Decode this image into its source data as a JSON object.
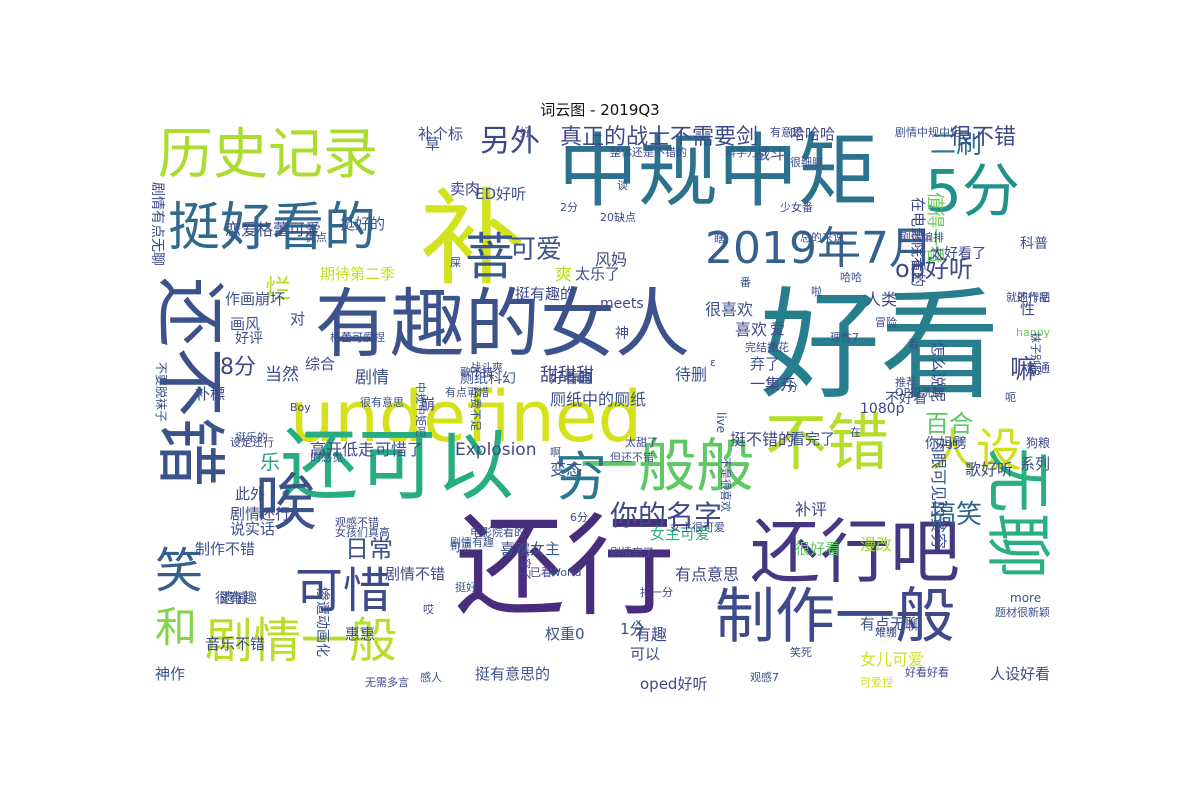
{
  "title": "词云图 - 2019Q3",
  "words": [
    {
      "text": "好看",
      "color": "#277f8e",
      "vertical": false
    },
    {
      "text": "还行",
      "color": "#472d7b",
      "vertical": false
    },
    {
      "text": "undefined",
      "color": "#d5e21a",
      "vertical": false
    },
    {
      "text": "有趣的女人",
      "color": "#3b528b",
      "vertical": false
    },
    {
      "text": "中规中矩",
      "color": "#2c728e",
      "vertical": false
    },
    {
      "text": "还可以",
      "color": "#27ad81",
      "vertical": false
    },
    {
      "text": "还不错",
      "color": "#3b528b",
      "vertical": true
    },
    {
      "text": "补",
      "color": "#d2e21b",
      "vertical": false
    },
    {
      "text": "历史记录",
      "color": "#addc30",
      "vertical": false
    },
    {
      "text": "还行吧",
      "color": "#453781",
      "vertical": false
    },
    {
      "text": "一般般",
      "color": "#5ec962",
      "vertical": false
    },
    {
      "text": "不错",
      "color": "#b5de2b",
      "vertical": false
    },
    {
      "text": "无聊",
      "color": "#2ab07f",
      "vertical": true
    },
    {
      "text": "制作一般",
      "color": "#3e4a89",
      "vertical": false
    },
    {
      "text": "挺好看的",
      "color": "#31688e",
      "vertical": false
    },
    {
      "text": "5分",
      "color": "#21918c",
      "vertical": false
    },
    {
      "text": "2019年7月",
      "color": "#33638d",
      "vertical": false
    },
    {
      "text": "唉",
      "color": "#3b528b",
      "vertical": false
    },
    {
      "text": "剧情一般",
      "color": "#b8de29",
      "vertical": false
    },
    {
      "text": "可惜",
      "color": "#3e4a89",
      "vertical": false
    },
    {
      "text": "穷",
      "color": "#2a788e",
      "vertical": false
    },
    {
      "text": "人设",
      "color": "#d0e11c",
      "vertical": false
    },
    {
      "text": "笑",
      "color": "#355f8d",
      "vertical": false
    },
    {
      "text": "和",
      "color": "#84d44b",
      "vertical": false
    },
    {
      "text": "菩",
      "color": "#38598c",
      "vertical": false
    },
    {
      "text": "另外",
      "color": "#3e4989",
      "vertical": false
    },
    {
      "text": "真正的战士不需要剑",
      "color": "#3e4a89",
      "vertical": false
    },
    {
      "text": "二刷",
      "color": "#2d708e",
      "vertical": false
    },
    {
      "text": "很不错",
      "color": "#3e4989",
      "vertical": false
    },
    {
      "text": "可爱",
      "color": "#3b528b",
      "vertical": false
    },
    {
      "text": "op好听",
      "color": "#3e4a89",
      "vertical": false
    },
    {
      "text": "你的名字",
      "color": "#3e4a89",
      "vertical": false
    },
    {
      "text": "搞笑",
      "color": "#33638d",
      "vertical": false
    },
    {
      "text": "日常",
      "color": "#3b528b",
      "vertical": false
    },
    {
      "text": "嘛",
      "color": "#3e4989",
      "vertical": false
    },
    {
      "text": "百合",
      "color": "#5ec962",
      "vertical": false
    },
    {
      "text": "8分",
      "color": "#3e4989",
      "vertical": false
    },
    {
      "text": "烂",
      "color": "#b5de2b",
      "vertical": false
    },
    {
      "text": "值得一看",
      "color": "#6ccd5a",
      "vertical": true
    },
    {
      "text": "乐",
      "color": "#21a685",
      "vertical": false
    },
    {
      "text": "恋爱格蕾可爱",
      "color": "#3e4989",
      "vertical": false
    },
    {
      "text": "作画崩坏",
      "color": "#3b528b",
      "vertical": false
    },
    {
      "text": "期待第二季",
      "color": "#c2df23",
      "vertical": false
    },
    {
      "text": "当然",
      "color": "#3e4989",
      "vertical": false
    },
    {
      "text": "剧情",
      "color": "#3b528b",
      "vertical": false
    },
    {
      "text": "综合",
      "color": "#3e4989",
      "vertical": false
    },
    {
      "text": "画风",
      "color": "#3b528b",
      "vertical": false
    },
    {
      "text": "甜甜甜",
      "color": "#3e4989",
      "vertical": false
    },
    {
      "text": "待删",
      "color": "#3b528b",
      "vertical": false
    },
    {
      "text": "高开低走",
      "color": "#3e4989",
      "vertical": false
    },
    {
      "text": "可惜了",
      "color": "#3b528b",
      "vertical": false
    },
    {
      "text": "Explosion",
      "color": "#3e4989",
      "vertical": false
    },
    {
      "text": "变态",
      "color": "#3b528b",
      "vertical": false
    },
    {
      "text": "挺不错的",
      "color": "#3e4989",
      "vertical": false
    },
    {
      "text": "看完了",
      "color": "#3b528b",
      "vertical": false
    },
    {
      "text": "补评",
      "color": "#3e4989",
      "vertical": false
    },
    {
      "text": "很好看",
      "color": "#5ec962",
      "vertical": false
    },
    {
      "text": "漫改",
      "color": "#a0da39",
      "vertical": false
    },
    {
      "text": "歌好听",
      "color": "#3e4989",
      "vertical": false
    },
    {
      "text": "系列",
      "color": "#3b528b",
      "vertical": false
    },
    {
      "text": "女主可爱",
      "color": "#2fb47c",
      "vertical": false
    },
    {
      "text": "有点意思",
      "color": "#3e4989",
      "vertical": false
    },
    {
      "text": "有点无聊",
      "color": "#3b528b",
      "vertical": false
    },
    {
      "text": "女儿可爱",
      "color": "#d0e11c",
      "vertical": false
    },
    {
      "text": "人设好看",
      "color": "#3e4989",
      "vertical": false
    },
    {
      "text": "权重0",
      "color": "#3b528b",
      "vertical": false
    },
    {
      "text": "有趣",
      "color": "#3e4989",
      "vertical": false
    },
    {
      "text": "挺有意思的",
      "color": "#3b528b",
      "vertical": false
    },
    {
      "text": "oped好听",
      "color": "#3e4989",
      "vertical": false
    },
    {
      "text": "制作不错",
      "color": "#3b528b",
      "vertical": false
    },
    {
      "text": "剧情还行",
      "color": "#3e4989",
      "vertical": false
    },
    {
      "text": "说实话",
      "color": "#3b528b",
      "vertical": false
    },
    {
      "text": "剧情不错",
      "color": "#3e4989",
      "vertical": false
    },
    {
      "text": "喜欢女主",
      "color": "#3b528b",
      "vertical": false
    },
    {
      "text": "喜欢",
      "color": "#3e4989",
      "vertical": false
    },
    {
      "text": "很喜欢",
      "color": "#3b528b",
      "vertical": false
    },
    {
      "text": "风妈",
      "color": "#3e4989",
      "vertical": false
    },
    {
      "text": "爽",
      "color": "#b8de29",
      "vertical": false
    },
    {
      "text": "太乐了",
      "color": "#3b528b",
      "vertical": false
    },
    {
      "text": "挺有趣的",
      "color": "#3e4989",
      "vertical": false
    },
    {
      "text": "ED好听",
      "color": "#3b528b",
      "vertical": false
    },
    {
      "text": "卖肉",
      "color": "#3e4989",
      "vertical": false
    },
    {
      "text": "战斗",
      "color": "#3b528b",
      "vertical": false
    },
    {
      "text": "哈哈哈",
      "color": "#3e4989",
      "vertical": false
    },
    {
      "text": "挺好的",
      "color": "#3b528b",
      "vertical": false
    },
    {
      "text": "补个标",
      "color": "#3e4989",
      "vertical": false
    },
    {
      "text": "草",
      "color": "#3b528b",
      "vertical": false
    },
    {
      "text": "补標",
      "color": "#3e4989",
      "vertical": false
    },
    {
      "text": "不好看",
      "color": "#3b528b",
      "vertical": false
    },
    {
      "text": "1080p",
      "color": "#3e4989",
      "vertical": false
    },
    {
      "text": "科普",
      "color": "#3b528b",
      "vertical": false
    },
    {
      "text": "太好看了",
      "color": "#3e4989",
      "vertical": false
    },
    {
      "text": "你妈劈",
      "color": "#3b528b",
      "vertical": false
    },
    {
      "text": "一集弃",
      "color": "#3e4989",
      "vertical": false
    },
    {
      "text": "弃了",
      "color": "#3b528b",
      "vertical": false
    },
    {
      "text": "好看的",
      "color": "#3e4989",
      "vertical": false
    },
    {
      "text": "作画",
      "color": "#3b528b",
      "vertical": false
    },
    {
      "text": "神",
      "color": "#3e4989",
      "vertical": false
    },
    {
      "text": "好评",
      "color": "#3b528b",
      "vertical": false
    },
    {
      "text": "音乐不错",
      "color": "#3e4989",
      "vertical": false
    },
    {
      "text": "神作",
      "color": "#3b528b",
      "vertical": false
    },
    {
      "text": "此外",
      "color": "#3e4989",
      "vertical": false
    },
    {
      "text": "很有趣",
      "color": "#3b528b",
      "vertical": false
    },
    {
      "text": "遗憾",
      "color": "#3e4989",
      "vertical": false
    },
    {
      "text": "惠惠",
      "color": "#3b528b",
      "vertical": false
    },
    {
      "text": "可以",
      "color": "#3e4989",
      "vertical": false
    },
    {
      "text": "1分",
      "color": "#3b528b",
      "vertical": false
    },
    {
      "text": "人类",
      "color": "#3e4989",
      "vertical": false
    },
    {
      "text": "性",
      "color": "#3b528b",
      "vertical": false
    },
    {
      "text": "对",
      "color": "#3e4989",
      "vertical": false
    },
    {
      "text": "爱",
      "color": "#3b528b",
      "vertical": false
    },
    {
      "text": "崩",
      "color": "#3e4989",
      "vertical": false
    },
    {
      "text": "厕纸科幻",
      "color": "#3b528b",
      "vertical": false
    },
    {
      "text": "meets",
      "color": "#3e4989",
      "vertical": false
    },
    {
      "text": "厕纸中的厕纸",
      "color": "#3b528b",
      "vertical": false
    },
    {
      "text": "怎么说呢",
      "color": "#3e4989",
      "vertical": true
    },
    {
      "text": "内眼可见的贫穷",
      "color": "#3b528b",
      "vertical": true
    },
    {
      "text": "在电影院看的",
      "color": "#3e4989",
      "vertical": true
    },
    {
      "text": "惨遭动画化",
      "color": "#3b528b",
      "vertical": true
    },
    {
      "text": "剧情有点无聊",
      "color": "#3e4989",
      "vertical": true
    },
    {
      "text": "不要脱袜子",
      "color": "#3b528b",
      "vertical": true
    },
    {
      "text": "普通",
      "color": "#3e4989",
      "vertical": false
    },
    {
      "text": "理性7",
      "color": "#3b528b",
      "vertical": false
    },
    {
      "text": "冒险",
      "color": "#3e4989",
      "vertical": false
    },
    {
      "text": "哈哈",
      "color": "#3b528b",
      "vertical": false
    },
    {
      "text": "就还行吧",
      "color": "#3e4989",
      "vertical": false
    },
    {
      "text": "总的来说",
      "color": "#3b528b",
      "vertical": false
    },
    {
      "text": "少女番",
      "color": "#3e4989",
      "vertical": false
    },
    {
      "text": "很细腻",
      "color": "#3b528b",
      "vertical": false
    },
    {
      "text": "整体还是不错的",
      "color": "#3e4989",
      "vertical": false
    },
    {
      "text": "科学万岁",
      "color": "#3b528b",
      "vertical": false
    },
    {
      "text": "有意思",
      "color": "#3e4989",
      "vertical": false
    },
    {
      "text": "剧情中规中矩",
      "color": "#3b528b",
      "vertical": false
    },
    {
      "text": "可爱捏",
      "color": "#d0e11c",
      "vertical": false
    },
    {
      "text": "好看好看",
      "color": "#3e4989",
      "vertical": false
    },
    {
      "text": "笑死",
      "color": "#3b528b",
      "vertical": false
    },
    {
      "text": "难绷",
      "color": "#3e4989",
      "vertical": false
    },
    {
      "text": "题材很新颖",
      "color": "#3b528b",
      "vertical": false
    },
    {
      "text": "OP很洗脑",
      "color": "#3e4989",
      "vertical": false
    },
    {
      "text": "推荐",
      "color": "#3b528b",
      "vertical": false
    },
    {
      "text": "完结撒花",
      "color": "#3e4989",
      "vertical": false
    },
    {
      "text": "观感7",
      "color": "#3b528b",
      "vertical": false
    },
    {
      "text": "Boy",
      "color": "#3e4989",
      "vertical": false
    },
    {
      "text": "World",
      "color": "#3b528b",
      "vertical": false
    },
    {
      "text": "girl",
      "color": "#3e4989",
      "vertical": false
    },
    {
      "text": "happy",
      "color": "#6ccd5a",
      "vertical": false
    },
    {
      "text": "more",
      "color": "#3b528b",
      "vertical": false
    },
    {
      "text": "live",
      "color": "#3e4989",
      "vertical": true
    },
    {
      "text": "x",
      "color": "#3b528b",
      "vertical": false
    },
    {
      "text": "ε",
      "color": "#3e4989",
      "vertical": false
    },
    {
      "text": "7分",
      "color": "#3b528b",
      "vertical": false
    },
    {
      "text": "6分",
      "color": "#3e4989",
      "vertical": false
    },
    {
      "text": "2分",
      "color": "#3b528b",
      "vertical": false
    },
    {
      "text": "20缺点",
      "color": "#3e4989",
      "vertical": false
    },
    {
      "text": "优点",
      "color": "#3b528b",
      "vertical": false
    },
    {
      "text": "的作品",
      "color": "#3e4989",
      "vertical": false
    },
    {
      "text": "挺乐的",
      "color": "#3b528b",
      "vertical": false
    },
    {
      "text": "设定还行",
      "color": "#3e4989",
      "vertical": false
    },
    {
      "text": "挺好",
      "color": "#3b528b",
      "vertical": false
    },
    {
      "text": "扣一分",
      "color": "#3e4989",
      "vertical": false
    },
    {
      "text": "可恶",
      "color": "#3b528b",
      "vertical": false
    },
    {
      "text": "已看",
      "color": "#3e4989",
      "vertical": false
    },
    {
      "text": "感人",
      "color": "#3b528b",
      "vertical": false
    },
    {
      "text": "无需多言",
      "color": "#3e4989",
      "vertical": false
    },
    {
      "text": "的感觉",
      "color": "#3b528b",
      "vertical": false
    },
    {
      "text": "女主很可爱",
      "color": "#3e4989",
      "vertical": false
    },
    {
      "text": "剧情忘了",
      "color": "#3b528b",
      "vertical": false
    },
    {
      "text": "观感不错",
      "color": "#3e4989",
      "vertical": false
    },
    {
      "text": "女孩们真高",
      "color": "#3b528b",
      "vertical": false
    },
    {
      "text": "格蕾可爱捏",
      "color": "#3e4989",
      "vertical": false
    },
    {
      "text": "很有意思",
      "color": "#3b528b",
      "vertical": false
    },
    {
      "text": "剧情编排",
      "color": "#3e4989",
      "vertical": false
    },
    {
      "text": "剧情有趣",
      "color": "#3b528b",
      "vertical": false
    },
    {
      "text": "电影院看的",
      "color": "#3e4989",
      "vertical": false
    },
    {
      "text": "经费不足",
      "color": "#3b528b",
      "vertical": true
    },
    {
      "text": "太穷了",
      "color": "#3e4989",
      "vertical": true
    },
    {
      "text": "中规中矩吧",
      "color": "#3b528b",
      "vertical": true
    },
    {
      "text": "歌不错",
      "color": "#3e4989",
      "vertical": false
    },
    {
      "text": "战斗爽",
      "color": "#3b528b",
      "vertical": false
    },
    {
      "text": "狗粮",
      "color": "#3e4989",
      "vertical": false
    },
    {
      "text": "不是很喜欢",
      "color": "#3b528b",
      "vertical": true
    },
    {
      "text": "袜子别脱",
      "color": "#3e4989",
      "vertical": true
    },
    {
      "text": "但还不错",
      "color": "#3b528b",
      "vertical": false
    },
    {
      "text": "太甜了",
      "color": "#3e4989",
      "vertical": false
    },
    {
      "text": "番",
      "color": "#3b528b",
      "vertical": false
    },
    {
      "text": "屎",
      "color": "#3e4989",
      "vertical": false
    },
    {
      "text": "有点可惜",
      "color": "#3b528b",
      "vertical": false
    },
    {
      "text": "在",
      "color": "#3e4989",
      "vertical": false
    },
    {
      "text": "啊",
      "color": "#3b528b",
      "vertical": false
    },
    {
      "text": "哎",
      "color": "#3e4989",
      "vertical": false
    },
    {
      "text": "好",
      "color": "#3b528b",
      "vertical": false
    },
    {
      "text": "谈",
      "color": "#3e4989",
      "vertical": false
    },
    {
      "text": "瞎",
      "color": "#3b528b",
      "vertical": false
    },
    {
      "text": "啦",
      "color": "#3e4989",
      "vertical": false
    },
    {
      "text": "看",
      "color": "#3b528b",
      "vertical": false
    },
    {
      "text": "呃",
      "color": "#3e4989",
      "vertical": false
    }
  ]
}
